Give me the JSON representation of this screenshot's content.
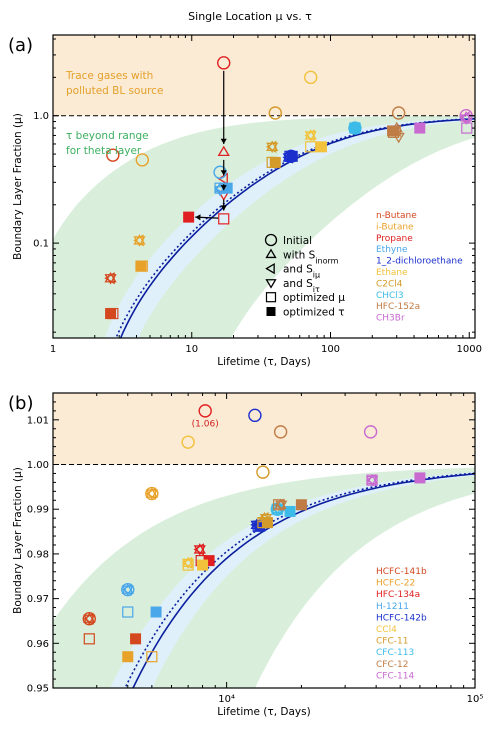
{
  "chart_data": [
    {
      "type": "scatter",
      "panel_label": "(a)",
      "title": "Single Location μ vs. τ",
      "xlabel": "Lifetime (τ, Days)",
      "ylabel": "Boundary Layer Fraction (μ)",
      "xscale": "log",
      "yscale": "log",
      "xlim": [
        1,
        1100
      ],
      "ylim": [
        0.018,
        4.3
      ],
      "xticks": [
        1,
        10,
        100,
        1000
      ],
      "xtick_labels": [
        "1",
        "10",
        "100",
        "1000"
      ],
      "yticks": [
        0.1,
        1.0
      ],
      "ytick_labels": [
        "0.1",
        "1.0"
      ],
      "reference_line": 1.0,
      "region_labels": [
        "Trace gases with\npolluted BL source",
        "τ beyond range\nfor theta layer"
      ],
      "region_colors": {
        "top": "#fbead4",
        "band": "#d9efdc"
      },
      "marker_legend": [
        {
          "shape": "circle",
          "label": "Initial"
        },
        {
          "shape": "triangle-up",
          "label": "with S_inorm"
        },
        {
          "shape": "triangle-left",
          "label": "and S_iμ"
        },
        {
          "shape": "triangle-down",
          "label": "and S_iτ"
        },
        {
          "shape": "square-open",
          "label": "optimized μ"
        },
        {
          "shape": "square-filled",
          "label": "optimized τ"
        }
      ],
      "series": [
        {
          "name": "n-Butane",
          "color": "#d4481f",
          "initial": [
            2.7,
            0.49
          ],
          "S_norm": [
            2.6,
            0.053
          ],
          "S_mu": [
            2.6,
            0.053
          ],
          "S_tau": [
            2.6,
            0.053
          ],
          "opt_mu": [
            2.7,
            0.028
          ],
          "opt_tau": [
            2.6,
            0.028
          ]
        },
        {
          "name": "i-Butane",
          "color": "#e8a22a",
          "initial": [
            4.4,
            0.45
          ],
          "S_norm": [
            4.2,
            0.105
          ],
          "S_mu": [
            4.2,
            0.105
          ],
          "S_tau": [
            4.2,
            0.105
          ],
          "opt_mu": [
            4.4,
            0.066
          ],
          "opt_tau": [
            4.3,
            0.066
          ]
        },
        {
          "name": "Propane",
          "color": "#e02020",
          "initial": [
            17,
            2.6
          ],
          "S_norm": [
            17,
            0.52
          ],
          "S_mu": [
            17,
            0.32
          ],
          "S_tau": [
            17,
            0.24
          ],
          "opt_mu": [
            17,
            0.155
          ],
          "opt_tau": [
            9.5,
            0.16
          ]
        },
        {
          "name": "Ethyne",
          "color": "#4aa7ea",
          "initial": [
            16,
            0.36
          ],
          "S_norm": [
            16,
            0.27
          ],
          "S_mu": [
            16,
            0.27
          ],
          "S_tau": [
            16,
            0.26
          ],
          "opt_mu": [
            16,
            0.27
          ],
          "opt_tau": [
            18,
            0.27
          ]
        },
        {
          "name": "1_2-dichloroethane",
          "color": "#1a2fcc",
          "initial": [
            52,
            0.48
          ],
          "S_norm": [
            50,
            0.47
          ],
          "S_mu": [
            50,
            0.47
          ],
          "S_tau": [
            50,
            0.47
          ],
          "opt_mu": [
            51,
            0.48
          ],
          "opt_tau": [
            53,
            0.48
          ]
        },
        {
          "name": "Ethane",
          "color": "#f2c23c",
          "initial": [
            72,
            2.0
          ],
          "S_norm": [
            72,
            0.7
          ],
          "S_mu": [
            72,
            0.7
          ],
          "S_tau": [
            72,
            0.7
          ],
          "opt_mu": [
            72,
            0.57
          ],
          "opt_tau": [
            86,
            0.57
          ]
        },
        {
          "name": "C2Cl4",
          "color": "#d59b2a",
          "initial": [
            40,
            1.05
          ],
          "S_norm": [
            38,
            0.57
          ],
          "S_mu": [
            38,
            0.57
          ],
          "S_tau": [
            38,
            0.57
          ],
          "opt_mu": [
            38,
            0.43
          ],
          "opt_tau": [
            40,
            0.43
          ]
        },
        {
          "name": "CHCl3",
          "color": "#3dbbe8",
          "initial": [
            150,
            0.8
          ],
          "S_norm": [
            150,
            0.8
          ],
          "S_mu": [
            150,
            0.8
          ],
          "S_tau": [
            150,
            0.8
          ],
          "opt_mu": [
            150,
            0.8
          ],
          "opt_tau": [
            150,
            0.8
          ]
        },
        {
          "name": "HFC-152a",
          "color": "#c07c45",
          "initial": [
            310,
            1.05
          ],
          "S_norm": [
            300,
            0.8
          ],
          "S_mu": [
            300,
            0.76
          ],
          "S_tau": [
            310,
            0.68
          ],
          "opt_mu": [
            285,
            0.74
          ],
          "opt_tau": [
            280,
            0.76
          ]
        },
        {
          "name": "CH3Br",
          "color": "#c86ad0",
          "initial": [
            950,
            1.0
          ],
          "S_norm": [
            950,
            0.97
          ],
          "S_mu": [
            940,
            0.97
          ],
          "S_tau": [
            950,
            0.95
          ],
          "opt_mu": [
            960,
            0.8
          ],
          "opt_tau": [
            440,
            0.8
          ]
        }
      ]
    },
    {
      "type": "scatter",
      "panel_label": "(b)",
      "xlabel": "Lifetime (τ, Days)",
      "ylabel": "Boundary Layer Fraction (μ)",
      "xscale": "log",
      "yscale": "linear",
      "xlim": [
        2000,
        100000
      ],
      "ylim": [
        0.95,
        1.016
      ],
      "xticks": [
        10000,
        100000
      ],
      "xtick_labels": [
        "10⁴",
        "10⁵"
      ],
      "yticks": [
        0.95,
        0.96,
        0.97,
        0.98,
        0.99,
        1.0,
        1.01
      ],
      "ytick_labels": [
        "0.95",
        "0.96",
        "0.97",
        "0.98",
        "0.99",
        "1.00",
        "1.01"
      ],
      "reference_line": 1.0,
      "annotation": "(1.06)",
      "series": [
        {
          "name": "HCFC-141b",
          "color": "#d4481f",
          "initial": [
            2800,
            0.9655
          ],
          "S_norm": [
            2800,
            0.9655
          ],
          "S_mu": [
            2800,
            0.9655
          ],
          "S_tau": [
            2800,
            0.9655
          ],
          "opt_mu": [
            2800,
            0.961
          ],
          "opt_tau": [
            4300,
            0.961
          ]
        },
        {
          "name": "HCFC-22",
          "color": "#e8a22a",
          "initial": [
            5000,
            0.9935
          ],
          "S_norm": [
            5000,
            0.9935
          ],
          "S_mu": [
            5000,
            0.9935
          ],
          "S_tau": [
            5000,
            0.9935
          ],
          "opt_mu": [
            5000,
            0.957
          ],
          "opt_tau": [
            4000,
            0.957
          ]
        },
        {
          "name": "HFC-134a",
          "color": "#e02020",
          "initial": [
            8200,
            1.012
          ],
          "S_norm": [
            7800,
            0.981
          ],
          "S_mu": [
            7800,
            0.981
          ],
          "S_tau": [
            7800,
            0.981
          ],
          "opt_mu": [
            7900,
            0.9785
          ],
          "opt_tau": [
            8500,
            0.9785
          ]
        },
        {
          "name": "H-1211",
          "color": "#4aa7ea",
          "initial": [
            4000,
            0.972
          ],
          "S_norm": [
            4000,
            0.972
          ],
          "S_mu": [
            4000,
            0.972
          ],
          "S_tau": [
            4000,
            0.972
          ],
          "opt_mu": [
            4000,
            0.967
          ],
          "opt_tau": [
            5200,
            0.967
          ]
        },
        {
          "name": "HCFC-142b",
          "color": "#1a2fcc",
          "initial": [
            13000,
            1.011
          ],
          "S_norm": [
            13200,
            0.9865
          ],
          "S_mu": [
            13200,
            0.9865
          ],
          "S_tau": [
            13200,
            0.9865
          ],
          "opt_mu": [
            13400,
            0.9862
          ],
          "opt_tau": [
            13600,
            0.9862
          ]
        },
        {
          "name": "CCl4",
          "color": "#f2c23c",
          "initial": [
            7000,
            1.005
          ],
          "S_norm": [
            7000,
            0.978
          ],
          "S_mu": [
            7000,
            0.978
          ],
          "S_tau": [
            7000,
            0.978
          ],
          "opt_mu": [
            7000,
            0.9775
          ],
          "opt_tau": [
            8000,
            0.9775
          ]
        },
        {
          "name": "CFC-11",
          "color": "#d59b2a",
          "initial": [
            14000,
            0.9983
          ],
          "S_norm": [
            14200,
            0.988
          ],
          "S_mu": [
            14200,
            0.988
          ],
          "S_tau": [
            14400,
            0.988
          ],
          "opt_mu": [
            14000,
            0.987
          ],
          "opt_tau": [
            14600,
            0.987
          ]
        },
        {
          "name": "CFC-113",
          "color": "#3dbbe8",
          "initial": [
            16000,
            0.99
          ],
          "S_norm": [
            16000,
            0.99
          ],
          "S_mu": [
            16000,
            0.99
          ],
          "S_tau": [
            16000,
            0.99
          ],
          "opt_mu": [
            16000,
            0.99
          ],
          "opt_tau": [
            18000,
            0.9895
          ]
        },
        {
          "name": "CFC-12",
          "color": "#c07c45",
          "initial": [
            16500,
            1.0073
          ],
          "S_norm": [
            16500,
            0.991
          ],
          "S_mu": [
            16500,
            0.991
          ],
          "S_tau": [
            16600,
            0.991
          ],
          "opt_mu": [
            16200,
            0.991
          ],
          "opt_tau": [
            20000,
            0.991
          ]
        },
        {
          "name": "CFC-114",
          "color": "#c86ad0",
          "initial": [
            38000,
            1.0073
          ],
          "S_norm": [
            38500,
            0.9965
          ],
          "S_mu": [
            38500,
            0.9965
          ],
          "S_tau": [
            38500,
            0.9965
          ],
          "opt_mu": [
            38500,
            0.9965
          ],
          "opt_tau": [
            60000,
            0.997
          ]
        }
      ]
    }
  ]
}
